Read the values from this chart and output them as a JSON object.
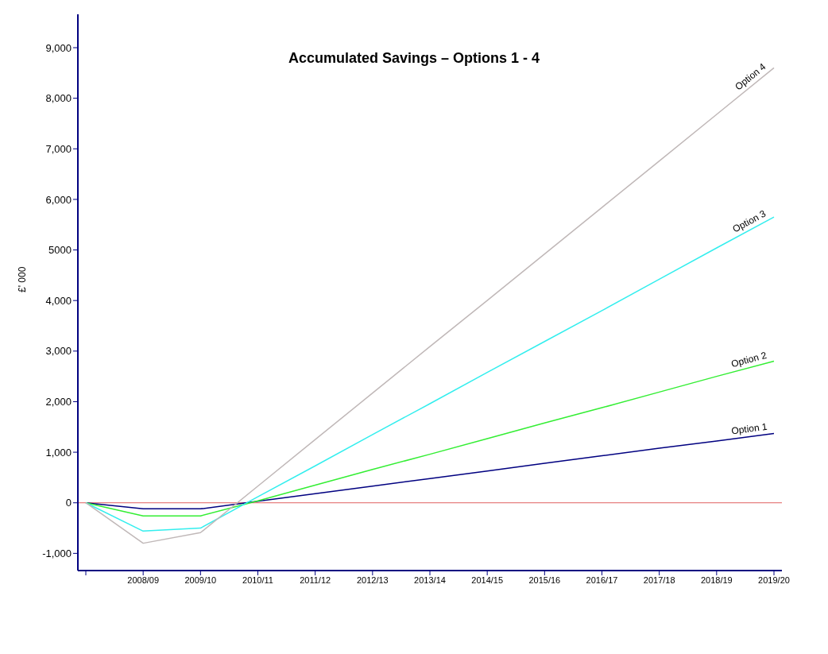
{
  "chart_data": {
    "type": "line",
    "title": "Accumulated Savings – Options 1 - 4",
    "ylabel": "£' 000",
    "categories": [
      null,
      "2008/09",
      "2009/10",
      "2010/11",
      "2011/12",
      "2012/13",
      "2013/14",
      "2014/15",
      "2015/16",
      "2016/17",
      "2017/18",
      "2018/19",
      "2019/20"
    ],
    "series": [
      {
        "name": "Option 1",
        "color": "#000080",
        "values": [
          0,
          -120,
          -120,
          30,
          180,
          330,
          480,
          630,
          780,
          930,
          1080,
          1220,
          1370
        ]
      },
      {
        "name": "Option 2",
        "color": "#33ee33",
        "values": [
          0,
          -260,
          -260,
          40,
          350,
          660,
          960,
          1270,
          1580,
          1880,
          2190,
          2500,
          2800
        ]
      },
      {
        "name": "Option 3",
        "color": "#33eeee",
        "values": [
          0,
          -560,
          -500,
          120,
          730,
          1350,
          1960,
          2580,
          3190,
          3800,
          4420,
          5040,
          5650
        ]
      },
      {
        "name": "Option 4",
        "color": "#c0b8b8",
        "values": [
          0,
          -800,
          -590,
          330,
          1250,
          2170,
          3090,
          4000,
          4920,
          5840,
          6760,
          7680,
          8600
        ]
      }
    ],
    "ylim": [
      -1340,
      9660
    ],
    "yticks": [
      {
        "value": -1000,
        "label": "-1,000"
      },
      0,
      {
        "value": 1000,
        "label": "1,000"
      },
      {
        "value": 2000,
        "label": "2,000"
      },
      {
        "value": 3000,
        "label": "3,000"
      },
      {
        "value": 4000,
        "label": "4,000"
      },
      5000,
      {
        "value": 6000,
        "label": "6,000"
      },
      {
        "value": 7000,
        "label": "7,000"
      },
      {
        "value": 8000,
        "label": "8,000"
      },
      {
        "value": 9000,
        "label": "9,000"
      }
    ],
    "ref_lines": [
      {
        "axis": "y",
        "value": 0,
        "color": "#e06060"
      }
    ],
    "grid": false,
    "legend": false,
    "marker": "none"
  }
}
